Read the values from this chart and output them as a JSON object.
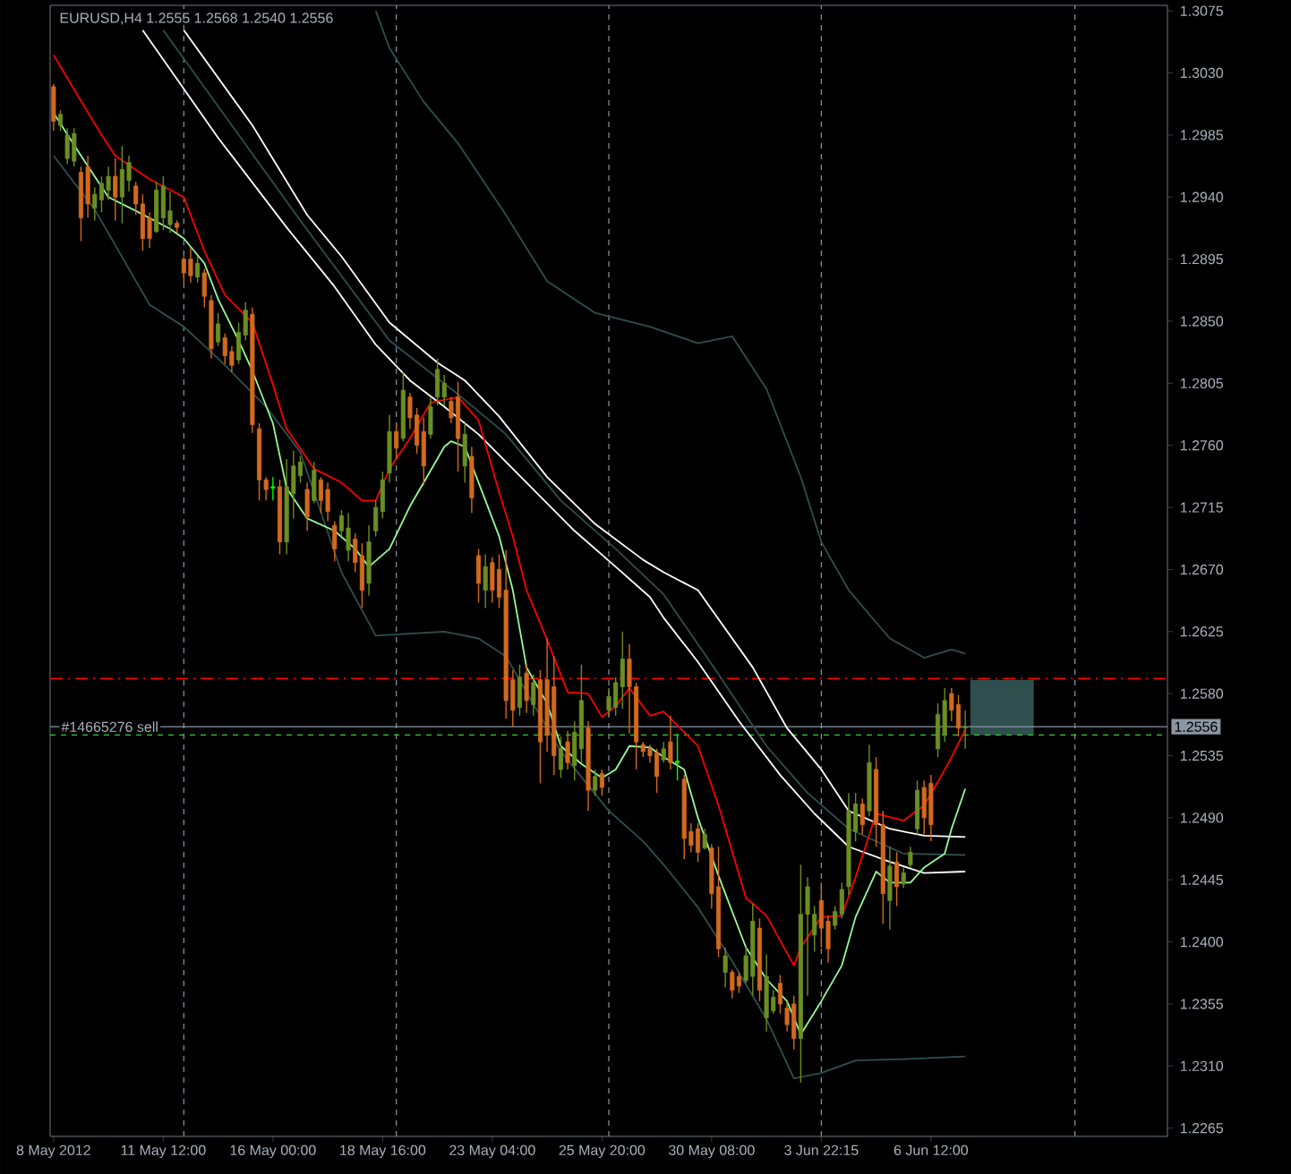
{
  "chart_data": {
    "type": "candlestick",
    "title": "EURUSD,H4  1.2555 1.2568 1.2540 1.2556",
    "categories": [
      "8 May 2012",
      null,
      null,
      null,
      null,
      null,
      null,
      null,
      null,
      null,
      null,
      null,
      null,
      null,
      null,
      null,
      "11 May 12:00",
      null,
      null,
      null,
      null,
      null,
      null,
      null,
      null,
      null,
      null,
      null,
      null,
      null,
      null,
      null,
      "16 May 00:00",
      null,
      null,
      null,
      null,
      null,
      null,
      null,
      null,
      null,
      null,
      null,
      null,
      null,
      null,
      null,
      "18 May 16:00",
      null,
      null,
      null,
      null,
      null,
      null,
      null,
      null,
      null,
      null,
      null,
      null,
      null,
      null,
      null,
      "23 May 04:00",
      null,
      null,
      null,
      null,
      null,
      null,
      null,
      null,
      null,
      null,
      null,
      null,
      null,
      null,
      null,
      "25 May 20:00",
      null,
      null,
      null,
      null,
      null,
      null,
      null,
      null,
      null,
      null,
      null,
      null,
      null,
      null,
      null,
      "30 May 08:00",
      null,
      null,
      null,
      null,
      null,
      null,
      null,
      null,
      null,
      null,
      null,
      null,
      null,
      null,
      null,
      "3 Jun 22:15",
      null,
      null,
      null,
      null,
      null,
      null,
      null,
      null,
      null,
      null,
      null,
      null,
      null,
      null,
      null,
      "6 Jun 12:00",
      null,
      null,
      null,
      null,
      null,
      null,
      null,
      null,
      null,
      null,
      null,
      null,
      null,
      null,
      null,
      null,
      null,
      null,
      null,
      null,
      null,
      null,
      null,
      null,
      null,
      null,
      null,
      null,
      null,
      null,
      null,
      null,
      null,
      null
    ],
    "ohlc": [
      [
        1.302,
        1.3022,
        1.2988,
        1.2995
      ],
      [
        1.2992,
        1.3003,
        1.2988,
        1.3
      ],
      [
        1.2968,
        1.299,
        1.2964,
        1.2985
      ],
      [
        1.2966,
        1.299,
        1.2962,
        1.2986
      ],
      [
        1.2958,
        1.2962,
        1.2908,
        1.2925
      ],
      [
        1.2962,
        1.297,
        1.2925,
        1.2935
      ],
      [
        1.2932,
        1.2947,
        1.2923,
        1.2942
      ],
      [
        1.2938,
        1.2955,
        1.2929,
        1.295
      ],
      [
        1.2945,
        1.2962,
        1.2938,
        1.2955
      ],
      [
        1.2955,
        1.2968,
        1.2923,
        1.294
      ],
      [
        1.294,
        1.2977,
        1.2921,
        1.296
      ],
      [
        1.2952,
        1.297,
        1.2944,
        1.2965
      ],
      [
        1.2948,
        1.2951,
        1.2927,
        1.2935
      ],
      [
        1.2935,
        1.2942,
        1.2901,
        1.291
      ],
      [
        1.2925,
        1.2929,
        1.2903,
        1.291
      ],
      [
        1.2915,
        1.2951,
        1.2914,
        1.2945
      ],
      [
        1.2925,
        1.2955,
        1.2916,
        1.2948
      ],
      [
        1.292,
        1.2944,
        1.2914,
        1.293
      ],
      [
        1.2921,
        1.2923,
        1.2914,
        1.2918
      ],
      [
        1.2895,
        1.2897,
        1.2878,
        1.2885
      ],
      [
        1.2895,
        1.2903,
        1.2878,
        1.2883
      ],
      [
        1.2882,
        1.2897,
        1.2878,
        1.2892
      ],
      [
        1.2885,
        1.2888,
        1.286,
        1.2868
      ],
      [
        1.2865,
        1.2869,
        1.2823,
        1.283
      ],
      [
        1.2835,
        1.2856,
        1.2832,
        1.2848
      ],
      [
        1.2838,
        1.2841,
        1.2819,
        1.2825
      ],
      [
        1.2828,
        1.2832,
        1.2813,
        1.2818
      ],
      [
        1.2822,
        1.2849,
        1.2819,
        1.2842
      ],
      [
        1.284,
        1.2864,
        1.2836,
        1.2858
      ],
      [
        1.2855,
        1.286,
        1.2769,
        1.2775
      ],
      [
        1.2772,
        1.2776,
        1.272,
        1.2735
      ],
      [
        1.2735,
        1.2737,
        1.272,
        1.2728
      ],
      [
        1.2729,
        1.2737,
        1.272,
        1.273
      ],
      [
        1.273,
        1.2735,
        1.2681,
        1.269
      ],
      [
        1.269,
        1.275,
        1.2681,
        1.273
      ],
      [
        1.2725,
        1.2756,
        1.2707,
        1.2745
      ],
      [
        1.2738,
        1.2752,
        1.2733,
        1.2748
      ],
      [
        1.2728,
        1.2733,
        1.2698,
        1.2708
      ],
      [
        1.272,
        1.2748,
        1.2718,
        1.2742
      ],
      [
        1.2735,
        1.2737,
        1.2711,
        1.272
      ],
      [
        1.2728,
        1.2733,
        1.2705,
        1.2712
      ],
      [
        1.2702,
        1.2705,
        1.2676,
        1.2685
      ],
      [
        1.2698,
        1.2713,
        1.2694,
        1.2709
      ],
      [
        1.2684,
        1.2711,
        1.2676,
        1.27
      ],
      [
        1.2692,
        1.2696,
        1.2668,
        1.2675
      ],
      [
        1.268,
        1.2689,
        1.2642,
        1.2655
      ],
      [
        1.266,
        1.2702,
        1.2651,
        1.269
      ],
      [
        1.2698,
        1.272,
        1.2694,
        1.2715
      ],
      [
        1.2712,
        1.2741,
        1.2707,
        1.2735
      ],
      [
        1.274,
        1.2782,
        1.2733,
        1.277
      ],
      [
        1.277,
        1.2776,
        1.275,
        1.2758
      ],
      [
        1.2765,
        1.2813,
        1.2763,
        1.28
      ],
      [
        1.2795,
        1.2798,
        1.2772,
        1.278
      ],
      [
        1.2782,
        1.2787,
        1.2754,
        1.276
      ],
      [
        1.277,
        1.278,
        1.2731,
        1.2745
      ],
      [
        1.2768,
        1.2795,
        1.2765,
        1.2788
      ],
      [
        1.2795,
        1.2823,
        1.2789,
        1.2815
      ],
      [
        1.2795,
        1.2811,
        1.2789,
        1.2805
      ],
      [
        1.2792,
        1.2795,
        1.2776,
        1.278
      ],
      [
        1.2795,
        1.2806,
        1.2741,
        1.2765
      ],
      [
        1.2745,
        1.2776,
        1.2733,
        1.2768
      ],
      [
        1.2752,
        1.2759,
        1.2711,
        1.2722
      ],
      [
        1.268,
        1.2685,
        1.2646,
        1.266
      ],
      [
        1.2655,
        1.2681,
        1.2642,
        1.2672
      ],
      [
        1.2675,
        1.2679,
        1.2646,
        1.2655
      ],
      [
        1.267,
        1.2681,
        1.2642,
        1.265
      ],
      [
        1.2655,
        1.2684,
        1.2562,
        1.2575
      ],
      [
        1.259,
        1.2597,
        1.2556,
        1.2568
      ],
      [
        1.257,
        1.2601,
        1.2564,
        1.2592
      ],
      [
        1.2595,
        1.2601,
        1.2566,
        1.2575
      ],
      [
        1.2572,
        1.2594,
        1.2564,
        1.2588
      ],
      [
        1.259,
        1.2597,
        1.2515,
        1.2545
      ],
      [
        1.259,
        1.262,
        1.2538,
        1.255
      ],
      [
        1.2585,
        1.2607,
        1.2521,
        1.2535
      ],
      [
        1.2525,
        1.2549,
        1.2519,
        1.254
      ],
      [
        1.2545,
        1.2553,
        1.2525,
        1.253
      ],
      [
        1.2528,
        1.256,
        1.2517,
        1.2552
      ],
      [
        1.254,
        1.2601,
        1.253,
        1.2575
      ],
      [
        1.2555,
        1.256,
        1.2495,
        1.251
      ],
      [
        1.251,
        1.2525,
        1.2506,
        1.252
      ],
      [
        1.2522,
        1.2525,
        1.2506,
        1.2512
      ],
      [
        1.2568,
        1.2584,
        1.2564,
        1.2578
      ],
      [
        1.257,
        1.2592,
        1.2564,
        1.2588
      ],
      [
        1.2585,
        1.2625,
        1.2569,
        1.2605
      ],
      [
        1.2605,
        1.2616,
        1.2551,
        1.2585
      ],
      [
        1.2585,
        1.2588,
        1.2525,
        1.2545
      ],
      [
        1.2543,
        1.2545,
        1.2534,
        1.2538
      ],
      [
        1.254,
        1.2543,
        1.253,
        1.2535
      ],
      [
        1.2537,
        1.254,
        1.2508,
        1.252
      ],
      [
        1.2532,
        1.2545,
        1.253,
        1.254
      ],
      [
        1.2545,
        1.2564,
        1.2525,
        1.253
      ],
      [
        1.253,
        1.2551,
        1.2517,
        1.2531
      ],
      [
        1.2518,
        1.2521,
        1.246,
        1.2475
      ],
      [
        1.248,
        1.2486,
        1.2465,
        1.247
      ],
      [
        1.2482,
        1.2486,
        1.2458,
        1.2465
      ],
      [
        1.2468,
        1.2482,
        1.2467,
        1.2478
      ],
      [
        1.2468,
        1.2471,
        1.2424,
        1.2435
      ],
      [
        1.244,
        1.2469,
        1.2389,
        1.2395
      ],
      [
        1.2378,
        1.2396,
        1.2367,
        1.239
      ],
      [
        1.2378,
        1.238,
        1.2359,
        1.2365
      ],
      [
        1.2375,
        1.2378,
        1.2363,
        1.2368
      ],
      [
        1.2372,
        1.2396,
        1.237,
        1.239
      ],
      [
        1.2375,
        1.2428,
        1.2361,
        1.2415
      ],
      [
        1.241,
        1.2417,
        1.2357,
        1.2365
      ],
      [
        1.2345,
        1.2391,
        1.2335,
        1.2375
      ],
      [
        1.235,
        1.2365,
        1.2348,
        1.236
      ],
      [
        1.237,
        1.2376,
        1.2348,
        1.2355
      ],
      [
        1.2352,
        1.2357,
        1.2335,
        1.234
      ],
      [
        1.2355,
        1.2361,
        1.2322,
        1.233
      ],
      [
        1.233,
        1.2456,
        1.2298,
        1.242
      ],
      [
        1.242,
        1.2447,
        1.2361,
        1.244
      ],
      [
        1.2405,
        1.2426,
        1.2393,
        1.242
      ],
      [
        1.243,
        1.2443,
        1.2396,
        1.241
      ],
      [
        1.2415,
        1.2419,
        1.2385,
        1.2395
      ],
      [
        1.2412,
        1.2426,
        1.2409,
        1.2422
      ],
      [
        1.242,
        1.2443,
        1.2417,
        1.2438
      ],
      [
        1.244,
        1.2508,
        1.2434,
        1.2495
      ],
      [
        1.248,
        1.2508,
        1.2473,
        1.25
      ],
      [
        1.25,
        1.2504,
        1.2478,
        1.2485
      ],
      [
        1.2495,
        1.2543,
        1.2491,
        1.253
      ],
      [
        1.2525,
        1.2534,
        1.2469,
        1.2485
      ],
      [
        1.2485,
        1.2495,
        1.2413,
        1.2435
      ],
      [
        1.243,
        1.2469,
        1.2409,
        1.2455
      ],
      [
        1.2458,
        1.2465,
        1.2426,
        1.244
      ],
      [
        1.2442,
        1.2454,
        1.2439,
        1.245
      ],
      [
        1.2456,
        1.2469,
        1.2454,
        1.2465
      ],
      [
        1.2482,
        1.2517,
        1.2478,
        1.251
      ],
      [
        1.2512,
        1.2517,
        1.2478,
        1.249
      ],
      [
        1.2515,
        1.2521,
        1.2473,
        1.2485
      ],
      [
        1.254,
        1.2573,
        1.2534,
        1.2565
      ],
      [
        1.255,
        1.2584,
        1.2545,
        1.2575
      ],
      [
        1.258,
        1.2584,
        1.256,
        1.2568
      ],
      [
        1.2572,
        1.2579,
        1.2549,
        1.2555
      ],
      [
        1.2555,
        1.2568,
        1.254,
        1.2556
      ],
      null,
      null,
      null,
      null,
      null,
      null,
      null,
      null,
      null,
      null,
      null,
      null,
      null,
      null,
      null,
      null,
      null,
      null,
      null,
      null,
      null,
      null,
      null,
      null,
      null,
      null,
      null,
      null,
      null
    ],
    "colors": [
      "#d2691e",
      "#6b8e23",
      "#6b8e23",
      "#6b8e23",
      "#d2691e",
      "#d2691e",
      "#6b8e23",
      "#6b8e23",
      "#6b8e23",
      "#d2691e",
      "#6b8e23",
      "#6b8e23",
      "#d2691e",
      "#d2691e",
      "#d2691e",
      "#6b8e23",
      "#6b8e23",
      "#6b8e23",
      "#d2691e",
      "#d2691e",
      "#d2691e",
      "#6b8e23",
      "#d2691e",
      "#d2691e",
      "#6b8e23",
      "#d2691e",
      "#d2691e",
      "#6b8e23",
      "#6b8e23",
      "#d2691e",
      "#d2691e",
      "#d2691e",
      "#00ff00",
      "#d2691e",
      "#6b8e23",
      "#6b8e23",
      "#6b8e23",
      "#d2691e",
      "#6b8e23",
      "#d2691e",
      "#d2691e",
      "#d2691e",
      "#6b8e23",
      "#6b8e23",
      "#d2691e",
      "#d2691e",
      "#6b8e23",
      "#6b8e23",
      "#6b8e23",
      "#6b8e23",
      "#d2691e",
      "#6b8e23",
      "#d2691e",
      "#d2691e",
      "#d2691e",
      "#6b8e23",
      "#6b8e23",
      "#6b8e23",
      "#d2691e",
      "#d2691e",
      "#6b8e23",
      "#d2691e",
      "#d2691e",
      "#6b8e23",
      "#d2691e",
      "#d2691e",
      "#d2691e",
      "#d2691e",
      "#6b8e23",
      "#d2691e",
      "#6b8e23",
      "#d2691e",
      "#d2691e",
      "#d2691e",
      "#6b8e23",
      "#d2691e",
      "#6b8e23",
      "#6b8e23",
      "#d2691e",
      "#6b8e23",
      "#d2691e",
      "#6b8e23",
      "#6b8e23",
      "#6b8e23",
      "#d2691e",
      "#d2691e",
      "#d2691e",
      "#d2691e",
      "#d2691e",
      "#6b8e23",
      "#d2691e",
      "#00ff00",
      "#d2691e",
      "#d2691e",
      "#d2691e",
      "#6b8e23",
      "#d2691e",
      "#d2691e",
      "#6b8e23",
      "#d2691e",
      "#d2691e",
      "#6b8e23",
      "#6b8e23",
      "#d2691e",
      "#6b8e23",
      "#6b8e23",
      "#d2691e",
      "#d2691e",
      "#d2691e",
      "#6b8e23",
      "#6b8e23",
      "#6b8e23",
      "#d2691e",
      "#d2691e",
      "#6b8e23",
      "#6b8e23",
      "#6b8e23",
      "#6b8e23",
      "#d2691e",
      "#6b8e23",
      "#d2691e",
      "#d2691e",
      "#6b8e23",
      "#d2691e",
      "#6b8e23",
      "#6b8e23",
      "#6b8e23",
      "#d2691e",
      "#d2691e",
      "#6b8e23",
      "#6b8e23",
      "#d2691e",
      "#d2691e",
      "#6b8e23",
      null,
      null,
      null,
      null,
      null,
      null,
      null,
      null,
      null,
      null,
      null,
      null,
      null,
      null,
      null,
      null,
      null,
      null,
      null,
      null,
      null,
      null,
      null,
      null,
      null,
      null,
      null,
      null,
      null
    ],
    "ylim": [
      1.2259,
      1.3079
    ],
    "yticks": [
      {
        "value": 1.2265,
        "label": "1.2265"
      },
      {
        "value": 1.231,
        "label": "1.2310"
      },
      {
        "value": 1.2355,
        "label": "1.2355"
      },
      {
        "value": 1.24,
        "label": "1.2400"
      },
      {
        "value": 1.2445,
        "label": "1.2445"
      },
      {
        "value": 1.249,
        "label": "1.2490"
      },
      {
        "value": 1.2535,
        "label": "1.2535"
      },
      {
        "value": 1.258,
        "label": "1.2580"
      },
      {
        "value": 1.2625,
        "label": "1.2625"
      },
      {
        "value": 1.267,
        "label": "1.2670"
      },
      {
        "value": 1.2715,
        "label": "1.2715"
      },
      {
        "value": 1.276,
        "label": "1.2760"
      },
      {
        "value": 1.2805,
        "label": "1.2805"
      },
      {
        "value": 1.285,
        "label": "1.2850"
      },
      {
        "value": 1.2895,
        "label": "1.2895"
      },
      {
        "value": 1.294,
        "label": "1.2940"
      },
      {
        "value": 1.2985,
        "label": "1.2985"
      },
      {
        "value": 1.303,
        "label": "1.3030"
      },
      {
        "value": 1.3075,
        "label": "1.3075"
      }
    ],
    "series": [
      {
        "type": "line",
        "color": "#2f4f4f",
        "values": [
          1.297,
          null,
          null,
          null,
          null,
          null,
          1.2931,
          null,
          null,
          null,
          null,
          null,
          null,
          null,
          1.2862,
          null,
          null,
          null,
          null,
          1.2846,
          null,
          null,
          null,
          null,
          1.2823,
          null,
          null,
          null,
          null,
          null,
          null,
          1.2788,
          null,
          null,
          null,
          null,
          1.2755,
          null,
          null,
          null,
          null,
          null,
          1.2668,
          null,
          null,
          null,
          null,
          1.2622,
          null,
          null,
          null,
          null,
          null,
          null,
          null,
          null,
          null,
          1.2625,
          null,
          null,
          null,
          null,
          1.262,
          null,
          null,
          null,
          1.2607,
          null,
          null,
          1.2581,
          null,
          null,
          null,
          null,
          1.2538,
          null,
          null,
          null,
          null,
          null,
          null,
          1.2495,
          null,
          null,
          null,
          null,
          1.2473,
          null,
          null,
          1.2456,
          null,
          null,
          null,
          null,
          1.2425,
          null,
          null,
          null,
          null,
          1.2386,
          null,
          null,
          null,
          null,
          1.2344,
          null,
          null,
          null,
          1.2301,
          null,
          null,
          null,
          1.2305,
          null,
          null,
          null,
          null,
          1.2314,
          null,
          null,
          null,
          null,
          null,
          null,
          1.2315,
          null,
          null,
          null,
          null,
          null,
          null,
          null,
          null,
          1.2317,
          null,
          null,
          null,
          null,
          null,
          null,
          null,
          null,
          null,
          null,
          null,
          null,
          null,
          null,
          null,
          null,
          null,
          null,
          null,
          null,
          null,
          null,
          null,
          null,
          null,
          null,
          null,
          null,
          null
        ]
      },
      {
        "type": "line",
        "color": "#2f4f4f",
        "values": [
          null,
          null,
          null,
          null,
          null,
          null,
          null,
          null,
          null,
          null,
          null,
          null,
          null,
          null,
          null,
          null,
          null,
          null,
          null,
          null,
          null,
          null,
          null,
          null,
          null,
          null,
          null,
          null,
          null,
          null,
          null,
          null,
          null,
          null,
          null,
          null,
          null,
          null,
          null,
          null,
          null,
          null,
          null,
          null,
          null,
          null,
          null,
          1.3075,
          null,
          1.3048,
          null,
          null,
          null,
          null,
          1.3009,
          null,
          null,
          null,
          null,
          1.2979,
          null,
          null,
          null,
          null,
          null,
          null,
          1.2927,
          null,
          null,
          null,
          null,
          null,
          1.2879,
          null,
          null,
          null,
          null,
          null,
          null,
          1.2856,
          null,
          null,
          null,
          null,
          null,
          null,
          null,
          1.2846,
          null,
          null,
          null,
          null,
          null,
          null,
          1.2834,
          null,
          null,
          null,
          null,
          1.2839,
          null,
          null,
          null,
          null,
          1.2801,
          null,
          null,
          null,
          null,
          1.2737,
          null,
          null,
          1.269,
          null,
          null,
          null,
          1.2655,
          null,
          null,
          null,
          null,
          null,
          1.262,
          null,
          null,
          null,
          null,
          1.2606,
          null,
          null,
          null,
          1.2612,
          null,
          1.2609,
          null,
          null,
          null,
          null,
          null,
          null,
          null,
          null,
          null,
          null,
          null,
          null,
          null,
          null,
          null,
          null,
          null,
          null,
          null,
          null,
          null,
          null,
          null,
          null,
          null,
          null,
          null,
          null,
          null
        ]
      },
      {
        "type": "line",
        "color": "#ffffff",
        "values": [
          null,
          null,
          null,
          null,
          null,
          null,
          null,
          null,
          null,
          null,
          null,
          null,
          null,
          null,
          null,
          null,
          null,
          null,
          null,
          1.3061,
          null,
          null,
          null,
          null,
          null,
          null,
          null,
          null,
          null,
          1.2992,
          null,
          null,
          null,
          null,
          null,
          null,
          null,
          1.2927,
          null,
          null,
          null,
          null,
          1.2897,
          null,
          null,
          null,
          null,
          null,
          null,
          1.2849,
          null,
          null,
          null,
          null,
          null,
          null,
          1.282,
          null,
          null,
          null,
          1.2807,
          null,
          null,
          null,
          null,
          1.2781,
          null,
          null,
          null,
          null,
          null,
          null,
          1.2737,
          null,
          null,
          null,
          null,
          null,
          null,
          1.2703,
          null,
          null,
          null,
          null,
          null,
          null,
          1.2677,
          null,
          null,
          1.2668,
          null,
          null,
          null,
          null,
          1.2655,
          null,
          null,
          null,
          null,
          null,
          null,
          null,
          1.2599,
          null,
          null,
          null,
          null,
          1.2555,
          null,
          null,
          null,
          null,
          1.2525,
          null,
          null,
          null,
          1.2495,
          null,
          null,
          null,
          null,
          null,
          1.2482,
          null,
          null,
          null,
          null,
          1.2477,
          null,
          null,
          null,
          null,
          null,
          1.2476,
          null,
          null,
          null,
          null,
          null,
          null,
          null,
          null,
          null,
          null,
          null,
          null,
          null,
          null,
          null,
          null,
          null,
          null,
          null,
          null,
          null,
          null,
          null,
          null,
          null,
          null,
          null,
          null,
          null
        ]
      },
      {
        "type": "line",
        "color": "#2f4f4f",
        "values": [
          null,
          null,
          null,
          null,
          null,
          null,
          null,
          null,
          null,
          null,
          null,
          null,
          null,
          null,
          null,
          null,
          1.3061,
          null,
          null,
          null,
          null,
          null,
          null,
          null,
          null,
          null,
          1.2992,
          null,
          null,
          null,
          null,
          null,
          null,
          null,
          null,
          null,
          1.2923,
          null,
          null,
          null,
          null,
          null,
          null,
          null,
          null,
          null,
          null,
          null,
          null,
          1.2836,
          null,
          null,
          null,
          null,
          null,
          null,
          null,
          null,
          null,
          1.2797,
          null,
          null,
          null,
          null,
          null,
          null,
          1.2768,
          null,
          null,
          null,
          null,
          null,
          null,
          null,
          1.272,
          null,
          null,
          null,
          null,
          null,
          null,
          null,
          1.2685,
          null,
          null,
          null,
          null,
          null,
          null,
          1.2652,
          null,
          null,
          null,
          null,
          null,
          null,
          null,
          1.2594,
          null,
          null,
          null,
          null,
          null,
          null,
          1.2542,
          null,
          null,
          null,
          null,
          null,
          1.2508,
          null,
          null,
          null,
          null,
          null,
          1.2482,
          null,
          null,
          null,
          null,
          null,
          null,
          null,
          1.2464,
          null,
          null,
          null,
          null,
          null,
          null,
          null,
          null,
          1.2463,
          null,
          null,
          null,
          null,
          null,
          null,
          null,
          null,
          null,
          null,
          null,
          null,
          null,
          null,
          null,
          null,
          null,
          null,
          null,
          null,
          null,
          null,
          null,
          null,
          null,
          null,
          null,
          null,
          null
        ]
      },
      {
        "type": "line",
        "color": "#ffffff",
        "values": [
          null,
          null,
          null,
          null,
          null,
          null,
          null,
          null,
          null,
          null,
          null,
          null,
          null,
          1.3061,
          null,
          null,
          null,
          null,
          null,
          null,
          null,
          null,
          null,
          null,
          1.2983,
          null,
          null,
          null,
          null,
          null,
          null,
          null,
          null,
          null,
          1.2918,
          null,
          null,
          null,
          null,
          null,
          null,
          1.2875,
          null,
          null,
          null,
          null,
          null,
          1.2833,
          null,
          null,
          null,
          null,
          1.2807,
          null,
          null,
          null,
          null,
          1.2788,
          null,
          null,
          null,
          null,
          1.2768,
          null,
          null,
          null,
          null,
          null,
          null,
          1.2733,
          null,
          null,
          null,
          null,
          null,
          null,
          1.2698,
          null,
          null,
          null,
          null,
          null,
          1.2672,
          null,
          null,
          null,
          null,
          1.265,
          null,
          1.2635,
          null,
          null,
          null,
          null,
          1.2603,
          null,
          null,
          null,
          null,
          null,
          1.256,
          null,
          null,
          null,
          null,
          null,
          1.2521,
          null,
          null,
          null,
          null,
          1.2493,
          null,
          null,
          null,
          null,
          1.2469,
          null,
          null,
          null,
          null,
          null,
          1.2458,
          null,
          null,
          null,
          null,
          1.245,
          null,
          null,
          null,
          null,
          null,
          1.2451,
          null,
          null,
          null,
          null,
          null,
          null,
          null,
          null,
          null,
          null,
          null,
          null,
          null,
          null,
          null,
          null,
          null,
          null,
          null,
          null,
          null,
          null,
          null,
          null,
          null,
          null,
          null,
          null,
          null
        ]
      },
      {
        "type": "line",
        "color": "#ff0000",
        "values": [
          1.3043,
          null,
          null,
          1.3018,
          null,
          null,
          null,
          1.2985,
          null,
          1.297,
          null,
          null,
          null,
          null,
          1.2953,
          null,
          null,
          null,
          null,
          1.294,
          null,
          null,
          1.2901,
          null,
          null,
          1.2869,
          null,
          null,
          null,
          1.2849,
          null,
          null,
          1.2804,
          null,
          1.2772,
          null,
          null,
          null,
          1.2743,
          null,
          null,
          null,
          1.2733,
          null,
          null,
          1.272,
          null,
          1.272,
          null,
          1.2743,
          null,
          null,
          1.2765,
          null,
          null,
          1.2791,
          null,
          null,
          null,
          1.2795,
          null,
          null,
          1.2778,
          null,
          null,
          1.2726,
          null,
          1.2694,
          null,
          1.2655,
          null,
          null,
          1.2619,
          null,
          null,
          1.2581,
          null,
          null,
          1.258,
          null,
          1.2563,
          null,
          1.2571,
          null,
          1.2584,
          null,
          null,
          1.2564,
          null,
          1.2567,
          null,
          null,
          null,
          null,
          1.2542,
          null,
          null,
          1.2499,
          null,
          null,
          null,
          1.2432,
          null,
          null,
          1.2419,
          null,
          null,
          null,
          1.2383,
          1.2396,
          null,
          null,
          1.2418,
          null,
          null,
          1.2419,
          null,
          1.2447,
          null,
          null,
          1.2493,
          null,
          null,
          null,
          1.2488,
          null,
          null,
          1.2499,
          null,
          1.2516,
          null,
          1.2534,
          null,
          1.2554,
          null,
          null,
          null,
          null,
          null,
          null,
          null,
          null,
          null,
          null,
          null,
          null,
          null,
          null,
          null,
          null,
          null,
          null,
          null,
          null,
          null,
          null,
          null,
          null,
          null,
          null,
          null,
          null,
          null
        ]
      },
      {
        "type": "line",
        "color": "#98fb98",
        "values": [
          1.3001,
          null,
          null,
          null,
          1.297,
          null,
          null,
          null,
          1.294,
          null,
          null,
          null,
          1.293,
          null,
          null,
          null,
          null,
          1.2917,
          null,
          1.291,
          null,
          null,
          1.2892,
          null,
          1.2866,
          null,
          null,
          1.2836,
          null,
          1.2814,
          null,
          null,
          1.2776,
          null,
          1.2729,
          null,
          null,
          1.2707,
          null,
          null,
          null,
          1.2698,
          null,
          null,
          1.2685,
          null,
          1.2672,
          null,
          null,
          1.2685,
          null,
          null,
          1.2716,
          null,
          1.2733,
          null,
          null,
          1.2759,
          1.2763,
          null,
          1.2759,
          null,
          1.2733,
          null,
          null,
          1.2694,
          null,
          1.2655,
          null,
          1.2599,
          null,
          null,
          1.2573,
          null,
          1.2542,
          null,
          null,
          1.2529,
          null,
          null,
          1.2519,
          null,
          1.2525,
          null,
          1.2542,
          null,
          null,
          1.2541,
          null,
          1.2534,
          null,
          null,
          1.2525,
          null,
          1.249,
          null,
          null,
          1.2448,
          null,
          null,
          null,
          1.2396,
          null,
          null,
          1.2373,
          null,
          null,
          1.2357,
          null,
          1.2333,
          null,
          null,
          1.2357,
          null,
          null,
          1.2383,
          null,
          1.2418,
          null,
          null,
          1.2451,
          null,
          1.2443,
          null,
          null,
          1.2443,
          null,
          1.2454,
          null,
          null,
          1.2464,
          1.2482,
          null,
          1.2511,
          null,
          null,
          null,
          null,
          null,
          null,
          null,
          null,
          null,
          null,
          null,
          null,
          null,
          null,
          null,
          null,
          null,
          null,
          null,
          null,
          null,
          null,
          null,
          null,
          null,
          null,
          null,
          null,
          null
        ]
      }
    ],
    "bands": [
      {
        "axis": "y",
        "from": 1.255,
        "to": 1.259,
        "color": "#2f4f4f"
      }
    ],
    "ref_lines": [
      {
        "axis": "y",
        "value": 1.2591,
        "color": "#ff0000",
        "line_style": "dashdot"
      },
      {
        "axis": "y",
        "value": 1.255,
        "color": "#32cd32",
        "line_style": "dashed"
      },
      {
        "axis": "y",
        "value": 1.2556,
        "color": "#8a96a3",
        "line_style": "solid",
        "label": "#14665276 sell"
      }
    ],
    "annotations": [
      {
        "text": "1.2556",
        "y": 1.2556
      }
    ]
  }
}
